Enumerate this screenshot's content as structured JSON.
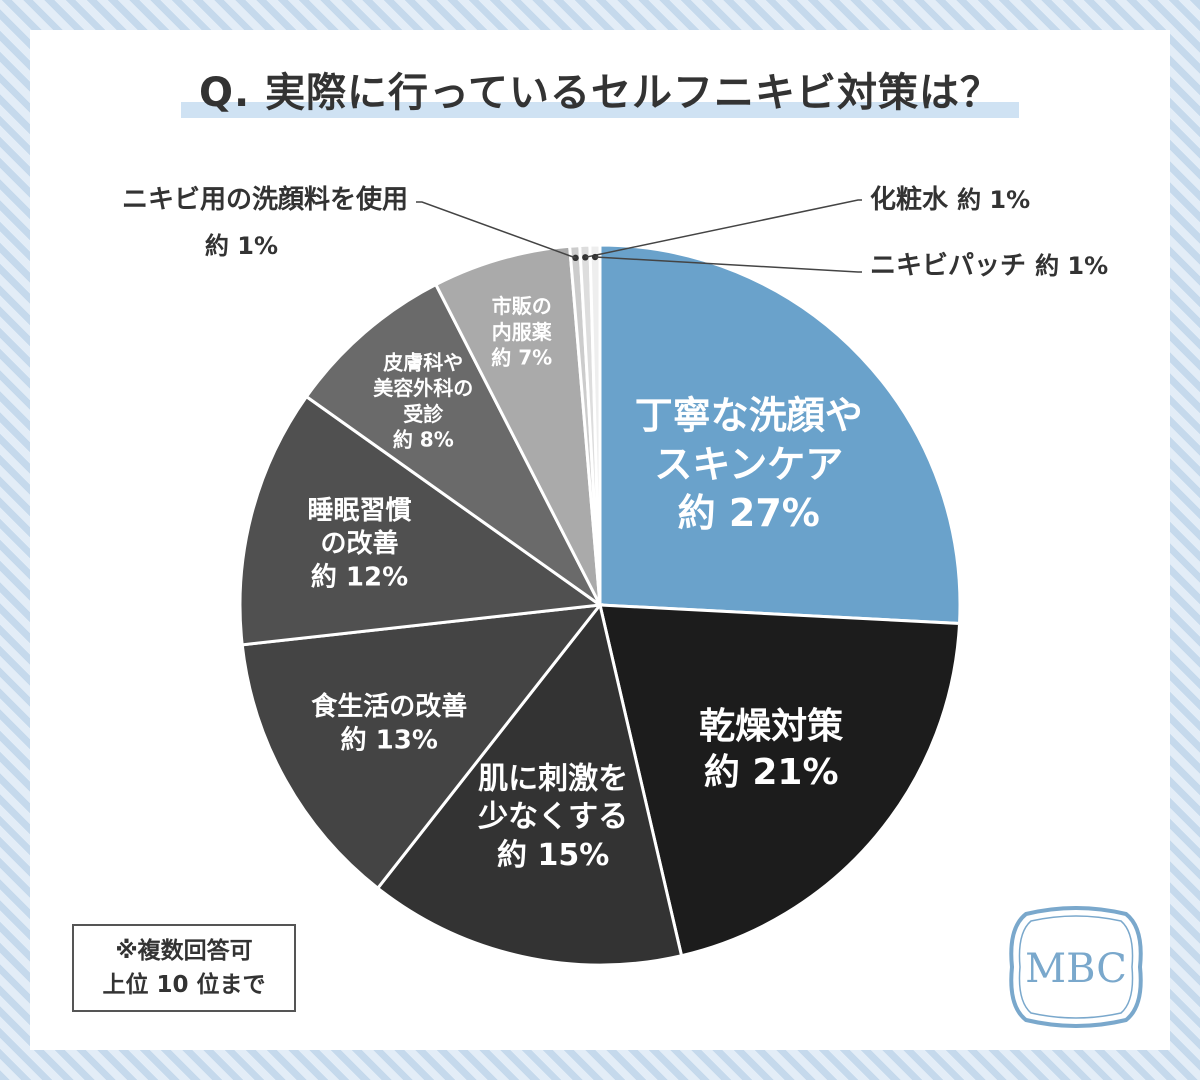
{
  "title": "Q. 実際に行っているセルフニキビ対策は？",
  "note": {
    "line1": "※複数回答可",
    "line2": "上位 10 位まで"
  },
  "logo": {
    "text": "MBC",
    "color": "#7aa8cc"
  },
  "colors": {
    "accent": "#6aa2cb",
    "black": "#1c1c1c",
    "dark1": "#333333",
    "dark2": "#444444",
    "dark3": "#505050",
    "mid1": "#6a6a6a",
    "mid2": "#8a8a8a",
    "light1": "#aaaaaa",
    "light2": "#cccccc",
    "light3": "#dddddd",
    "light4": "#eeeeee"
  },
  "chart_data": {
    "type": "pie",
    "title": "Q. 実際に行っているセルフニキビ対策は？",
    "unit": "%",
    "slices": [
      {
        "label_lines": [
          "丁寧な洗顔や",
          "スキンケア"
        ],
        "label": "丁寧な洗顔やスキンケア",
        "value": 27,
        "value_text": "約 27%",
        "color": "#6aa2cb"
      },
      {
        "label_lines": [
          "乾燥対策"
        ],
        "label": "乾燥対策",
        "value": 21,
        "value_text": "約 21%",
        "color": "#1c1c1c"
      },
      {
        "label_lines": [
          "肌に刺激を",
          "少なくする"
        ],
        "label": "肌に刺激を少なくする",
        "value": 15,
        "value_text": "約 15%",
        "color": "#333333"
      },
      {
        "label_lines": [
          "食生活の改善"
        ],
        "label": "食生活の改善",
        "value": 13,
        "value_text": "約 13%",
        "color": "#444444"
      },
      {
        "label_lines": [
          "睡眠習慣",
          "の改善"
        ],
        "label": "睡眠習慣の改善",
        "value": 12,
        "value_text": "約 12%",
        "color": "#505050"
      },
      {
        "label_lines": [
          "皮膚科や",
          "美容外科の",
          "受診"
        ],
        "label": "皮膚科や美容外科の受診",
        "value": 8,
        "value_text": "約 8%",
        "color": "#6a6a6a"
      },
      {
        "label_lines": [
          "市販の",
          "内服薬"
        ],
        "label": "市販の内服薬",
        "value": 7,
        "value_text": "約 7%",
        "color": "#aaaaaa"
      },
      {
        "label_lines": [
          "ニキビ用の洗顔料を使用"
        ],
        "label": "ニキビ用の洗顔料を使用",
        "value": 1,
        "value_text": "約 1%",
        "color": "#cccccc"
      },
      {
        "label_lines": [
          "化粧水"
        ],
        "label": "化粧水",
        "value": 1,
        "value_text": "約 1%",
        "color": "#dddddd"
      },
      {
        "label_lines": [
          "ニキビパッチ"
        ],
        "label": "ニキビパッチ",
        "value": 1,
        "value_text": "約 1%",
        "color": "#eeeeee"
      }
    ]
  }
}
